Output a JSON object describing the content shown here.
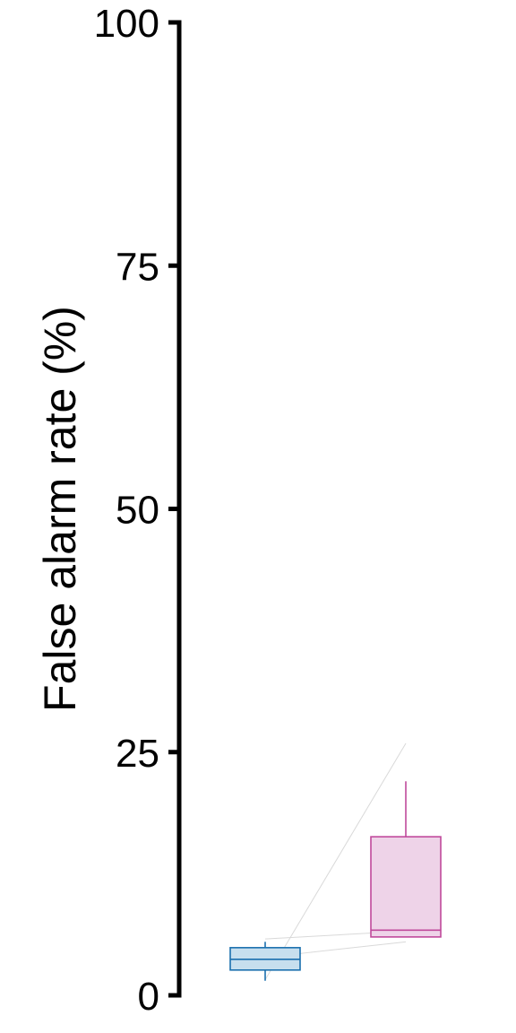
{
  "chart_data": {
    "type": "box",
    "title": "",
    "xlabel": "",
    "ylabel": "False alarm rate (%)",
    "ylim": [
      0,
      100
    ],
    "yticks": [
      {
        "value": 0,
        "label": "0"
      },
      {
        "value": 25,
        "label": "25"
      },
      {
        "value": 50,
        "label": "50"
      },
      {
        "value": 75,
        "label": "75"
      },
      {
        "value": 100,
        "label": "100"
      }
    ],
    "grid": false,
    "legend": "none",
    "groups": [
      {
        "color": "#1a6fae",
        "fill": "#c7dfee",
        "whisker_low": 1.5,
        "q1": 2.6,
        "median": 3.7,
        "q3": 4.9,
        "whisker_high": 5.5
      },
      {
        "color": "#c0499b",
        "fill": "#eed3e8",
        "whisker_low": 6.0,
        "q1": 6.0,
        "median": 6.7,
        "q3": 16.3,
        "whisker_high": 22.0
      }
    ],
    "paired_lines": [
      {
        "from": 1.6,
        "to": 25.9
      },
      {
        "from": 3.9,
        "to": 5.5
      },
      {
        "from": 5.8,
        "to": 6.6
      }
    ]
  }
}
